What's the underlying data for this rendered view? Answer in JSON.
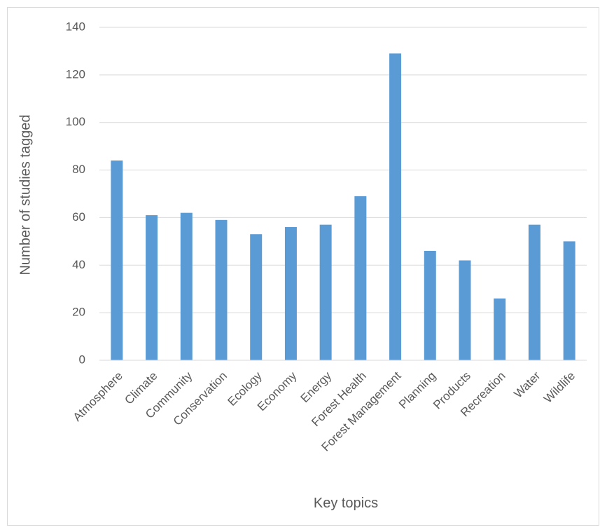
{
  "chart_data": {
    "type": "bar",
    "title": "",
    "xlabel": "Key topics",
    "ylabel": "Number of studies tagged",
    "categories": [
      "Atmosphere",
      "Climate",
      "Community",
      "Conservation",
      "Ecology",
      "Economy",
      "Energy",
      "Forest Health",
      "Forest Management",
      "Planning",
      "Products",
      "Recreation",
      "Water",
      "Wildlife"
    ],
    "values": [
      84,
      61,
      62,
      59,
      53,
      56,
      57,
      69,
      129,
      46,
      42,
      26,
      57,
      50
    ],
    "ylim": [
      0,
      140
    ],
    "yticks": [
      0,
      20,
      40,
      60,
      80,
      100,
      120,
      140
    ],
    "grid": true,
    "legend": "none",
    "bar_color": "#5b9bd5",
    "grid_color": "#d9d9d9",
    "text_color": "#595959"
  }
}
